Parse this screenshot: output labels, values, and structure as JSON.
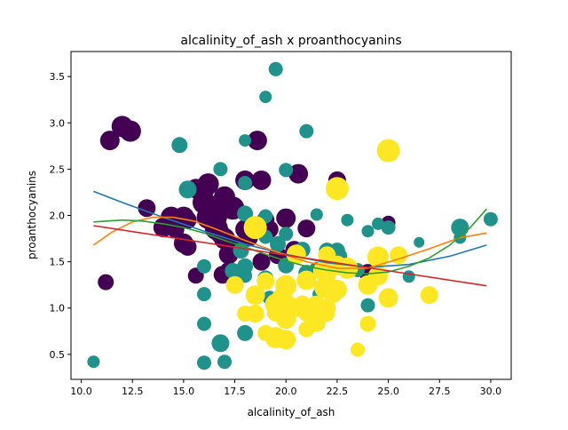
{
  "chart_data": {
    "type": "scatter",
    "title": "alcalinity_of_ash x proanthocyanins",
    "xlabel": "alcalinity_of_ash",
    "ylabel": "proanthocyanins",
    "xlim": [
      9.5,
      31.0
    ],
    "ylim": [
      0.23,
      3.77
    ],
    "xticks": [
      "10.0",
      "12.5",
      "15.0",
      "17.5",
      "20.0",
      "22.5",
      "25.0",
      "27.5",
      "30.0"
    ],
    "yticks": [
      "0.5",
      "1.0",
      "1.5",
      "2.0",
      "2.5",
      "3.0",
      "3.5"
    ],
    "grid": false,
    "legend": "none",
    "colors": {
      "class_0": "#440154",
      "class_1": "#21918c",
      "class_2": "#fde725",
      "curve_blue": "#1f77b4",
      "curve_orange": "#ff7f0e",
      "curve_green": "#2ca02c",
      "curve_red": "#d62728"
    },
    "series": [
      {
        "points": [
          [
            11.4,
            2.81,
            11
          ],
          [
            11.2,
            1.28,
            9
          ],
          [
            12.0,
            2.96,
            12
          ],
          [
            12.4,
            2.91,
            12
          ],
          [
            13.2,
            2.08,
            10
          ],
          [
            14.0,
            1.87,
            11
          ],
          [
            14.4,
            1.98,
            12
          ],
          [
            14.6,
            1.85,
            10
          ],
          [
            15.0,
            1.98,
            12
          ],
          [
            15.2,
            1.95,
            10
          ],
          [
            15.0,
            1.7,
            11
          ],
          [
            15.2,
            1.66,
            10
          ],
          [
            15.6,
            1.35,
            9
          ],
          [
            15.6,
            2.29,
            11
          ],
          [
            16.0,
            2.29,
            12
          ],
          [
            16.2,
            2.34,
            12
          ],
          [
            16.0,
            2.14,
            13
          ],
          [
            16.4,
            2.03,
            12
          ],
          [
            16.2,
            1.98,
            13
          ],
          [
            16.6,
            1.98,
            12
          ],
          [
            16.8,
            2.1,
            13
          ],
          [
            17.0,
            2.2,
            12
          ],
          [
            17.2,
            2.08,
            11
          ],
          [
            17.4,
            2.08,
            13
          ],
          [
            16.6,
            1.86,
            13
          ],
          [
            16.8,
            1.8,
            11
          ],
          [
            17.0,
            1.75,
            12
          ],
          [
            17.2,
            1.58,
            11
          ],
          [
            17.6,
            1.66,
            11
          ],
          [
            17.2,
            1.4,
            10
          ],
          [
            16.9,
            1.36,
            10
          ],
          [
            18.0,
            2.38,
            11
          ],
          [
            18.6,
            2.81,
            11
          ],
          [
            18.8,
            2.38,
            11
          ],
          [
            18.0,
            1.85,
            11
          ],
          [
            18.2,
            1.76,
            10
          ],
          [
            19.0,
            1.88,
            11
          ],
          [
            19.2,
            1.85,
            10
          ],
          [
            18.8,
            1.5,
            10
          ],
          [
            19.6,
            1.57,
            10
          ],
          [
            19.0,
            1.95,
            10
          ],
          [
            20.0,
            1.97,
            11
          ],
          [
            20.4,
            1.63,
            10
          ],
          [
            20.6,
            2.45,
            11
          ],
          [
            21.0,
            1.86,
            10
          ],
          [
            22.5,
            2.38,
            10
          ],
          [
            24.0,
            1.38,
            10
          ],
          [
            25.0,
            1.92,
            8
          ]
        ]
      },
      {
        "points": [
          [
            10.6,
            0.42,
            7
          ],
          [
            14.8,
            2.76,
            9
          ],
          [
            15.2,
            2.28,
            10
          ],
          [
            16.0,
            0.41,
            8
          ],
          [
            16.0,
            0.83,
            8
          ],
          [
            16.0,
            1.15,
            8
          ],
          [
            16.0,
            1.45,
            8
          ],
          [
            16.8,
            2.5,
            8
          ],
          [
            16.8,
            0.62,
            10
          ],
          [
            17.0,
            0.42,
            8
          ],
          [
            17.4,
            1.4,
            9
          ],
          [
            17.8,
            1.62,
            9
          ],
          [
            18.0,
            2.81,
            7
          ],
          [
            18.0,
            2.35,
            8
          ],
          [
            18.0,
            1.45,
            9
          ],
          [
            18.0,
            1.35,
            8
          ],
          [
            18.0,
            0.73,
            9
          ],
          [
            18.0,
            2.02,
            9
          ],
          [
            19.0,
            3.28,
            7
          ],
          [
            19.0,
            1.99,
            8
          ],
          [
            19.0,
            1.77,
            8
          ],
          [
            19.0,
            1.32,
            9
          ],
          [
            19.2,
            1.11,
            8
          ],
          [
            19.5,
            3.58,
            8
          ],
          [
            19.6,
            1.69,
            9
          ],
          [
            20.0,
            2.49,
            8
          ],
          [
            20.0,
            1.8,
            8
          ],
          [
            20.0,
            1.46,
            9
          ],
          [
            20.4,
            1.56,
            9
          ],
          [
            20.8,
            1.63,
            9
          ],
          [
            21.0,
            2.91,
            8
          ],
          [
            21.0,
            1.38,
            9
          ],
          [
            21.5,
            2.01,
            7
          ],
          [
            21.5,
            1.41,
            9
          ],
          [
            21.6,
            1.15,
            7
          ],
          [
            22.0,
            1.62,
            9
          ],
          [
            22.0,
            1.47,
            9
          ],
          [
            22.5,
            1.62,
            9
          ],
          [
            22.6,
            1.56,
            9
          ],
          [
            23.0,
            1.95,
            7
          ],
          [
            23.5,
            1.41,
            8
          ],
          [
            24.0,
            1.83,
            7
          ],
          [
            24.0,
            1.03,
            8
          ],
          [
            24.5,
            1.91,
            7
          ],
          [
            25.0,
            1.87,
            8
          ],
          [
            26.0,
            1.34,
            7
          ],
          [
            26.5,
            1.71,
            6
          ],
          [
            28.5,
            1.87,
            10
          ],
          [
            28.5,
            1.76,
            7
          ],
          [
            30.0,
            1.96,
            8
          ]
        ]
      },
      {
        "points": [
          [
            17.5,
            1.25,
            10
          ],
          [
            18.0,
            0.94,
            9
          ],
          [
            18.5,
            1.87,
            13
          ],
          [
            18.5,
            1.14,
            11
          ],
          [
            18.5,
            0.94,
            10
          ],
          [
            19.0,
            1.29,
            10
          ],
          [
            19.0,
            0.73,
            9
          ],
          [
            19.5,
            1.04,
            12
          ],
          [
            19.5,
            0.68,
            12
          ],
          [
            19.5,
            0.95,
            10
          ],
          [
            19.8,
            1.1,
            12
          ],
          [
            20.0,
            1.24,
            12
          ],
          [
            20.0,
            0.66,
            11
          ],
          [
            20.0,
            0.88,
            11
          ],
          [
            20.2,
            1.04,
            9
          ],
          [
            20.5,
            1.58,
            11
          ],
          [
            20.5,
            1.0,
            10
          ],
          [
            20.8,
            1.05,
            9
          ],
          [
            21.0,
            0.94,
            9
          ],
          [
            21.0,
            0.77,
            9
          ],
          [
            21.0,
            1.3,
            11
          ],
          [
            21.5,
            1.03,
            11
          ],
          [
            21.5,
            0.84,
            10
          ],
          [
            21.8,
            1.4,
            11
          ],
          [
            21.9,
            1.22,
            12
          ],
          [
            22.0,
            1.57,
            10
          ],
          [
            22.0,
            1.35,
            10
          ],
          [
            22.0,
            1.0,
            10
          ],
          [
            22.0,
            0.94,
            9
          ],
          [
            22.3,
            1.16,
            11
          ],
          [
            22.5,
            2.29,
            13
          ],
          [
            22.5,
            1.46,
            11
          ],
          [
            22.5,
            1.2,
            11
          ],
          [
            23.0,
            1.43,
            12
          ],
          [
            23.5,
            0.55,
            8
          ],
          [
            24.0,
            1.25,
            11
          ],
          [
            24.0,
            0.83,
            9
          ],
          [
            24.5,
            1.55,
            12
          ],
          [
            24.5,
            1.35,
            11
          ],
          [
            25.0,
            2.7,
            13
          ],
          [
            25.0,
            1.11,
            11
          ],
          [
            25.5,
            1.57,
            10
          ],
          [
            27.0,
            1.14,
            10
          ]
        ]
      }
    ],
    "curves": [
      {
        "x": [
          10.6,
          12.0,
          14.0,
          16.0,
          18.0,
          20.0,
          22.0,
          24.0,
          26.0,
          28.0,
          29.8
        ],
        "y": [
          2.26,
          2.14,
          1.98,
          1.83,
          1.69,
          1.58,
          1.49,
          1.44,
          1.47,
          1.56,
          1.68
        ]
      },
      {
        "x": [
          10.6,
          11.5,
          12.5,
          13.5,
          14.5,
          15.5,
          16.5,
          18.0,
          19.5,
          21.0,
          22.5,
          24.0,
          25.5,
          27.0,
          28.5,
          29.8
        ],
        "y": [
          1.68,
          1.82,
          1.93,
          1.98,
          1.98,
          1.94,
          1.86,
          1.73,
          1.61,
          1.5,
          1.43,
          1.43,
          1.53,
          1.64,
          1.76,
          1.81
        ]
      },
      {
        "x": [
          10.6,
          12.0,
          13.0,
          14.0,
          15.0,
          16.0,
          17.0,
          18.0,
          19.0,
          20.0,
          21.0,
          22.0,
          23.0,
          24.0,
          25.0,
          26.0,
          27.0,
          28.0,
          29.0,
          29.8
        ],
        "y": [
          1.93,
          1.95,
          1.94,
          1.91,
          1.87,
          1.81,
          1.73,
          1.66,
          1.58,
          1.51,
          1.45,
          1.41,
          1.38,
          1.37,
          1.39,
          1.45,
          1.54,
          1.68,
          1.87,
          2.07
        ]
      },
      {
        "x": [
          10.6,
          29.8
        ],
        "y": [
          1.89,
          1.24
        ]
      }
    ]
  }
}
